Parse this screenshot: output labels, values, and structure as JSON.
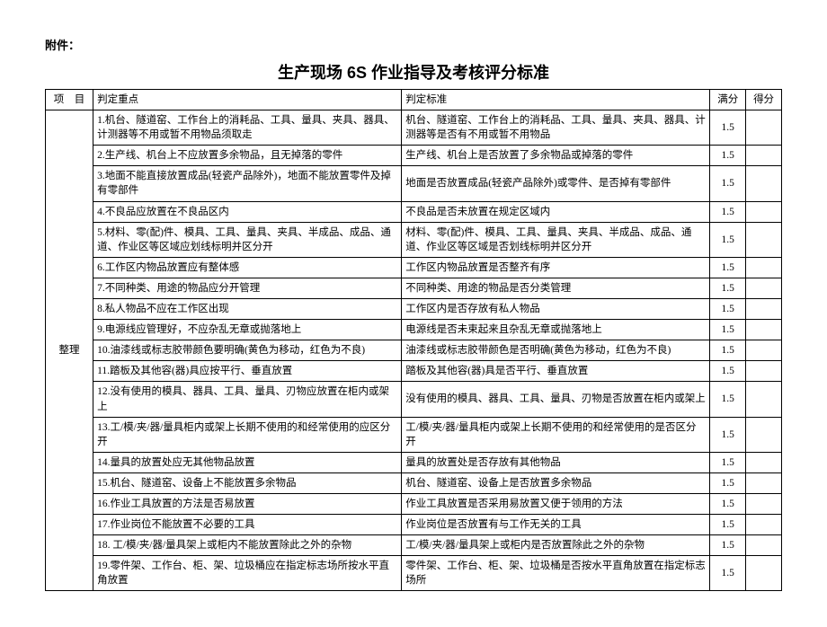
{
  "attachment_label": "附件：",
  "title": "生产现场 6S 作业指导及考核评分标准",
  "header": {
    "category": "项　目",
    "keypoint": "判定重点",
    "standard": "判定标准",
    "full": "满分",
    "score": "得分"
  },
  "category_label": "整理",
  "rows": [
    {
      "kp": "1.机台、隧道窑、工作台上的消耗品、工具、量具、夹具、器具、计测器等不用或暂不用物品须取走",
      "std": "机台、隧道窑、工作台上的消耗品、工具、量具、夹具、器具、计测器等是否有不用或暂不用物品",
      "full": "1.5"
    },
    {
      "kp": "2.生产线、机台上不应放置多余物品，且无掉落的零件",
      "std": "生产线、机台上是否放置了多余物品或掉落的零件",
      "full": "1.5"
    },
    {
      "kp": "3.地面不能直接放置成品(轻瓷产品除外)，地面不能放置零件及掉有零部件",
      "std": "地面是否放置成品(轻瓷产品除外)或零件、是否掉有零部件",
      "full": "1.5"
    },
    {
      "kp": "4.不良品应放置在不良品区内",
      "std": "不良品是否未放置在规定区域内",
      "full": "1.5"
    },
    {
      "kp": "5.材料、零(配)件、模具、工具、量具、夹具、半成品、成品、通道、作业区等区域应划线标明并区分开",
      "std": "材料、零(配)件、模具、工具、量具、夹具、半成品、成品、通道、作业区等区域是否划线标明并区分开",
      "full": "1.5"
    },
    {
      "kp": "6.工作区内物品放置应有整体感",
      "std": "工作区内物品放置是否整齐有序",
      "full": "1.5"
    },
    {
      "kp": "7.不同种类、用途的物品应分开管理",
      "std": "不同种类、用途的物品是否分类管理",
      "full": "1.5"
    },
    {
      "kp": "8.私人物品不应在工作区出现",
      "std": "工作区内是否存放有私人物品",
      "full": "1.5"
    },
    {
      "kp": "9.电源线应管理好，不应杂乱无章或抛落地上",
      "std": "电源线是否未束起来且杂乱无章或抛落地上",
      "full": "1.5"
    },
    {
      "kp": "10.油漆线或标志胶带颜色要明确(黄色为移动，红色为不良)",
      "std": "油漆线或标志胶带颜色是否明确(黄色为移动，红色为不良)",
      "full": "1.5"
    },
    {
      "kp": "11.踏板及其他容(器)具应按平行、垂直放置",
      "std": "踏板及其他容(器)具是否平行、垂直放置",
      "full": "1.5"
    },
    {
      "kp": "12.没有使用的模具、器具、工具、量具、刃物应放置在柜内或架上",
      "std": "没有使用的模具、器具、工具、量具、刃物是否放置在柜内或架上",
      "full": "1.5"
    },
    {
      "kp": "13.工/模/夹/器/量具柜内或架上长期不使用的和经常使用的应区分开",
      "std": "工/模/夹/器/量具柜内或架上长期不使用的和经常使用的是否区分开",
      "full": "1.5"
    },
    {
      "kp": "14.量具的放置处应无其他物品放置",
      "std": "量具的放置处是否存放有其他物品",
      "full": "1.5"
    },
    {
      "kp": "15.机台、隧道窑、设备上不能放置多余物品",
      "std": "机台、隧道窑、设备上是否放置多余物品",
      "full": "1.5"
    },
    {
      "kp": "16.作业工具放置的方法是否易放置",
      "std": "作业工具放置是否采用易放置又便于领用的方法",
      "full": "1.5"
    },
    {
      "kp": "17.作业岗位不能放置不必要的工具",
      "std": "作业岗位是否放置有与工作无关的工具",
      "full": "1.5"
    },
    {
      "kp": "18. 工/模/夹/器/量具架上或柜内不能放置除此之外的杂物",
      "std": "工/模/夹/器/量具架上或柜内是否放置除此之外的杂物",
      "full": "1.5"
    },
    {
      "kp": "19.零件架、工作台、柜、架、垃圾桶应在指定标志场所按水平直角放置",
      "std": "零件架、工作台、柜、架、垃圾桶是否按水平直角放置在指定标志场所",
      "full": "1.5"
    }
  ]
}
